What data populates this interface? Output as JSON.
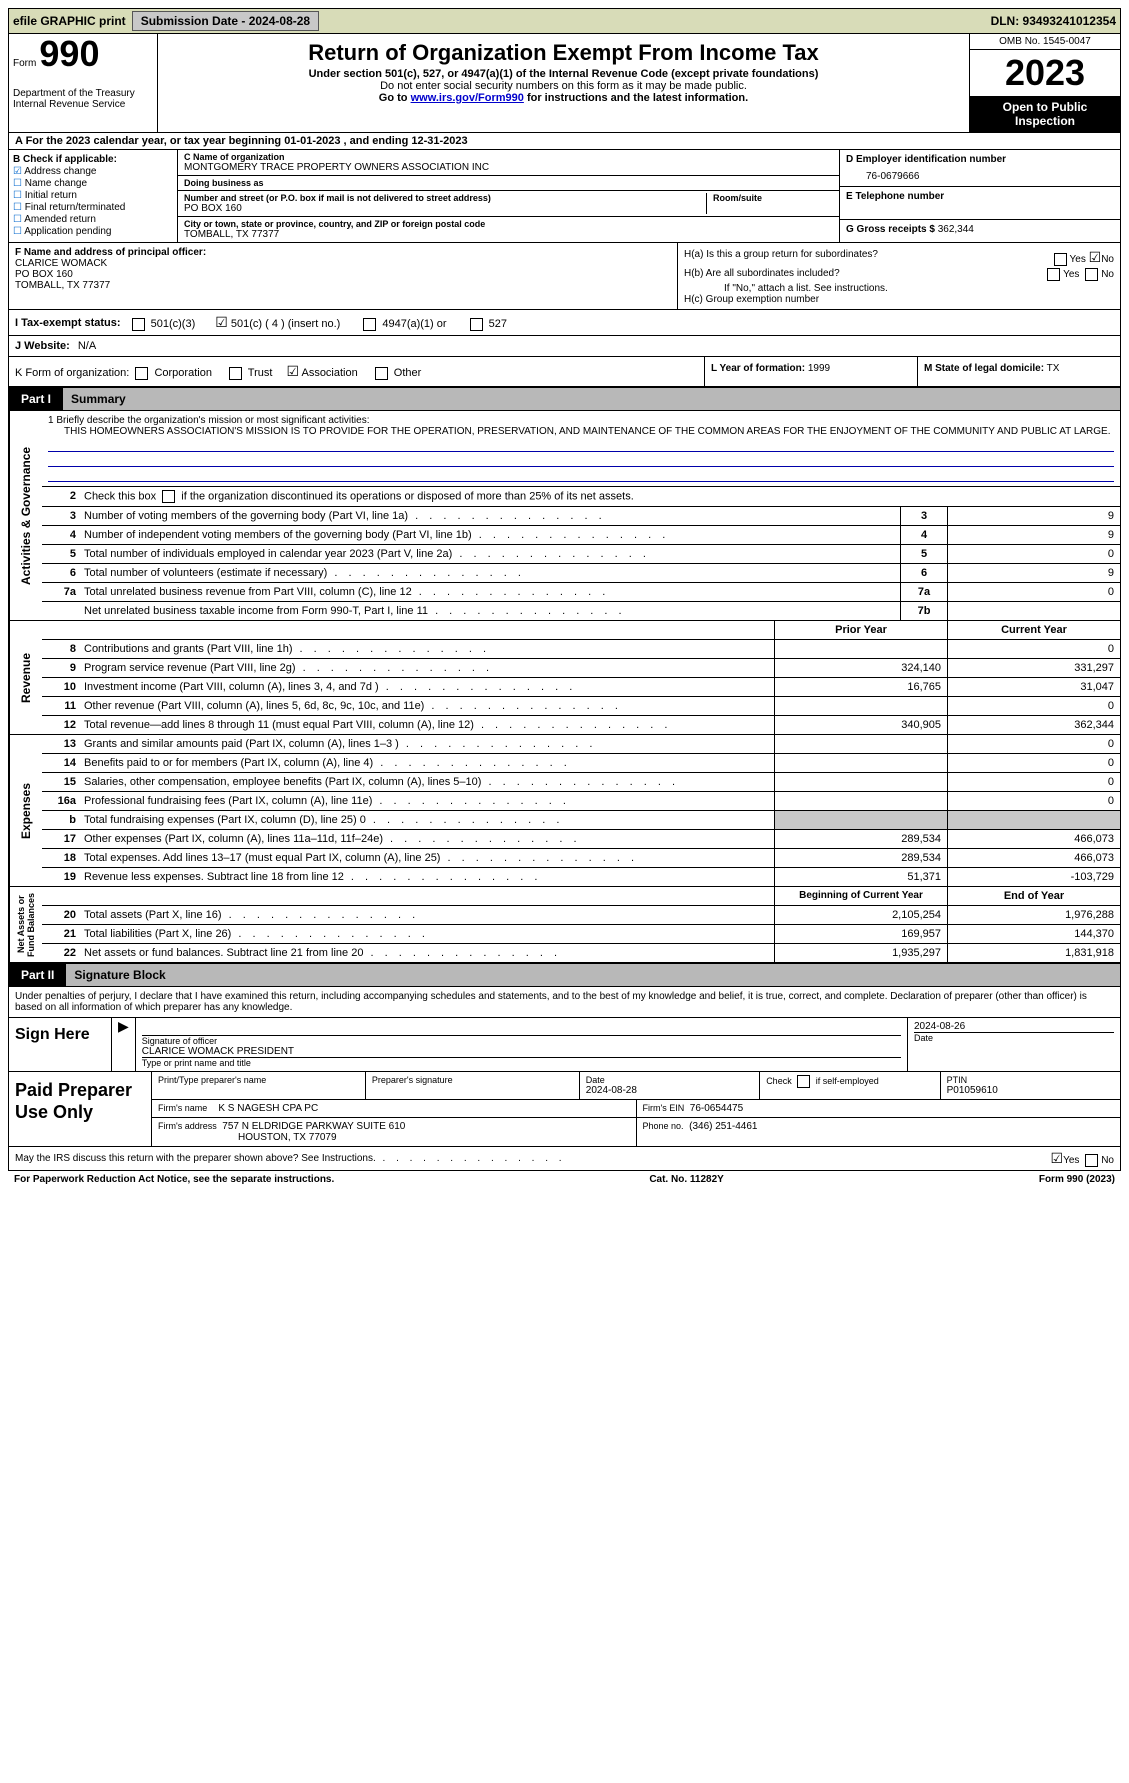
{
  "topbar": {
    "efile": "efile GRAPHIC print",
    "submission_label": "Submission Date - 2024-08-28",
    "dln_label": "DLN: 93493241012354"
  },
  "header": {
    "form_label": "Form",
    "form_number": "990",
    "dept": "Department of the Treasury\nInternal Revenue Service",
    "title": "Return of Organization Exempt From Income Tax",
    "sub1": "Under section 501(c), 527, or 4947(a)(1) of the Internal Revenue Code (except private foundations)",
    "sub2": "Do not enter social security numbers on this form as it may be made public.",
    "sub3_pre": "Go to ",
    "sub3_link": "www.irs.gov/Form990",
    "sub3_post": " for instructions and the latest information.",
    "omb": "OMB No. 1545-0047",
    "year": "2023",
    "inspect": "Open to Public Inspection"
  },
  "row_a": "A  For the 2023 calendar year, or tax year beginning 01-01-2023    , and ending 12-31-2023",
  "box_b": {
    "title": "B Check if applicable:",
    "items": [
      "Address change",
      "Name change",
      "Initial return",
      "Final return/terminated",
      "Amended return",
      "Application pending"
    ],
    "checked_index": 0
  },
  "box_c": {
    "name_label": "C Name of organization",
    "name": "MONTGOMERY TRACE PROPERTY OWNERS ASSOCIATION INC",
    "dba_label": "Doing business as",
    "dba": "",
    "addr_label": "Number and street (or P.O. box if mail is not delivered to street address)",
    "addr": "PO BOX 160",
    "room_label": "Room/suite",
    "city_label": "City or town, state or province, country, and ZIP or foreign postal code",
    "city": "TOMBALL, TX   77377"
  },
  "box_d": {
    "label": "D Employer identification number",
    "value": "76-0679666"
  },
  "box_e": {
    "label": "E Telephone number",
    "value": ""
  },
  "box_g": {
    "label": "G Gross receipts $",
    "value": "362,344"
  },
  "box_f": {
    "label": "F   Name and address of principal officer:",
    "name": "CLARICE WOMACK",
    "addr1": "PO BOX 160",
    "addr2": "TOMBALL, TX  77377"
  },
  "box_h": {
    "a_label": "H(a)  Is this a group return for subordinates?",
    "a_yes": "Yes",
    "a_no": "No",
    "b_label": "H(b)  Are all subordinates included?",
    "b_yes": "Yes",
    "b_no": "No",
    "note": "If \"No,\" attach a list. See instructions.",
    "c_label": "H(c)  Group exemption number"
  },
  "row_i": {
    "label": "I     Tax-exempt status:",
    "opts": [
      "501(c)(3)",
      "501(c) ( 4 ) (insert no.)",
      "4947(a)(1) or",
      "527"
    ],
    "checked_index": 1
  },
  "row_j": {
    "label": "J     Website:",
    "value": "N/A"
  },
  "row_k": {
    "label": "K Form of organization:",
    "opts": [
      "Corporation",
      "Trust",
      "Association",
      "Other"
    ],
    "checked_index": 2
  },
  "row_l": {
    "label": "L Year of formation:",
    "value": "1999"
  },
  "row_m": {
    "label": "M State of legal domicile:",
    "value": "TX"
  },
  "part1": {
    "label": "Part I",
    "title": "Summary"
  },
  "mission": {
    "label": "1   Briefly describe the organization's mission or most significant activities:",
    "text": "THIS HOMEOWNERS ASSOCIATION'S MISSION IS TO PROVIDE FOR THE OPERATION, PRESERVATION, AND MAINTENANCE OF THE COMMON AREAS FOR THE ENJOYMENT OF THE COMMUNITY AND PUBLIC AT LARGE."
  },
  "line2": "2    Check this box         if the organization discontinued its operations or disposed of more than 25% of its net assets.",
  "governance_rows": [
    {
      "n": "3",
      "d": "Number of voting members of the governing body (Part VI, line 1a)",
      "k": "3",
      "v": "9"
    },
    {
      "n": "4",
      "d": "Number of independent voting members of the governing body (Part VI, line 1b)",
      "k": "4",
      "v": "9"
    },
    {
      "n": "5",
      "d": "Total number of individuals employed in calendar year 2023 (Part V, line 2a)",
      "k": "5",
      "v": "0"
    },
    {
      "n": "6",
      "d": "Total number of volunteers (estimate if necessary)",
      "k": "6",
      "v": "9"
    },
    {
      "n": "7a",
      "d": "Total unrelated business revenue from Part VIII, column (C), line 12",
      "k": "7a",
      "v": "0"
    },
    {
      "n": "",
      "d": "Net unrelated business taxable income from Form 990-T, Part I, line 11",
      "k": "7b",
      "v": ""
    }
  ],
  "col_headers": {
    "c1": "Prior Year",
    "c2": "Current Year"
  },
  "revenue_rows": [
    {
      "n": "8",
      "d": "Contributions and grants (Part VIII, line 1h)",
      "c1": "",
      "c2": "0"
    },
    {
      "n": "9",
      "d": "Program service revenue (Part VIII, line 2g)",
      "c1": "324,140",
      "c2": "331,297"
    },
    {
      "n": "10",
      "d": "Investment income (Part VIII, column (A), lines 3, 4, and 7d )",
      "c1": "16,765",
      "c2": "31,047"
    },
    {
      "n": "11",
      "d": "Other revenue (Part VIII, column (A), lines 5, 6d, 8c, 9c, 10c, and 11e)",
      "c1": "",
      "c2": "0"
    },
    {
      "n": "12",
      "d": "Total revenue—add lines 8 through 11 (must equal Part VIII, column (A), line 12)",
      "c1": "340,905",
      "c2": "362,344"
    }
  ],
  "expense_rows": [
    {
      "n": "13",
      "d": "Grants and similar amounts paid (Part IX, column (A), lines 1–3 )",
      "c1": "",
      "c2": "0"
    },
    {
      "n": "14",
      "d": "Benefits paid to or for members (Part IX, column (A), line 4)",
      "c1": "",
      "c2": "0"
    },
    {
      "n": "15",
      "d": "Salaries, other compensation, employee benefits (Part IX, column (A), lines 5–10)",
      "c1": "",
      "c2": "0"
    },
    {
      "n": "16a",
      "d": "Professional fundraising fees (Part IX, column (A), line 11e)",
      "c1": "",
      "c2": "0"
    },
    {
      "n": "b",
      "d": "Total fundraising expenses (Part IX, column (D), line 25) 0",
      "c1": "grey",
      "c2": "grey"
    },
    {
      "n": "17",
      "d": "Other expenses (Part IX, column (A), lines 11a–11d, 11f–24e)",
      "c1": "289,534",
      "c2": "466,073"
    },
    {
      "n": "18",
      "d": "Total expenses. Add lines 13–17 (must equal Part IX, column (A), line 25)",
      "c1": "289,534",
      "c2": "466,073"
    },
    {
      "n": "19",
      "d": "Revenue less expenses. Subtract line 18 from line 12",
      "c1": "51,371",
      "c2": "-103,729"
    }
  ],
  "net_headers": {
    "c1": "Beginning of Current Year",
    "c2": "End of Year"
  },
  "net_rows": [
    {
      "n": "20",
      "d": "Total assets (Part X, line 16)",
      "c1": "2,105,254",
      "c2": "1,976,288"
    },
    {
      "n": "21",
      "d": "Total liabilities (Part X, line 26)",
      "c1": "169,957",
      "c2": "144,370"
    },
    {
      "n": "22",
      "d": "Net assets or fund balances. Subtract line 21 from line 20",
      "c1": "1,935,297",
      "c2": "1,831,918"
    }
  ],
  "vert_labels": {
    "gov": "Activities & Governance",
    "rev": "Revenue",
    "exp": "Expenses",
    "net": "Net Assets or\nFund Balances"
  },
  "part2": {
    "label": "Part II",
    "title": "Signature Block"
  },
  "perjury": "Under penalties of perjury, I declare that I have examined this return, including accompanying schedules and statements, and to the best of my knowledge and belief, it is true, correct, and complete. Declaration of preparer (other than officer) is based on all information of which preparer has any knowledge.",
  "sign": {
    "here": "Sign Here",
    "sig_label": "Signature of officer",
    "officer": "CLARICE WOMACK  PRESIDENT",
    "title_label": "Type or print name and title",
    "date_label": "Date",
    "date": "2024-08-26"
  },
  "paid": {
    "title": "Paid Preparer Use Only",
    "name_label": "Print/Type preparer's name",
    "sig_label": "Preparer's signature",
    "date_label": "Date",
    "date": "2024-08-28",
    "check_label": "Check         if self-employed",
    "ptin_label": "PTIN",
    "ptin": "P01059610",
    "firm_name_label": "Firm's name",
    "firm_name": "K S NAGESH CPA PC",
    "firm_ein_label": "Firm's EIN",
    "firm_ein": "76-0654475",
    "firm_addr_label": "Firm's address",
    "firm_addr1": "757 N ELDRIDGE PARKWAY SUITE 610",
    "firm_addr2": "HOUSTON, TX   77079",
    "phone_label": "Phone no.",
    "phone": "(346) 251-4461"
  },
  "discuss": {
    "text": "May the IRS discuss this return with the preparer shown above? See Instructions.",
    "yes": "Yes",
    "no": "No"
  },
  "footer": {
    "left": "For Paperwork Reduction Act Notice, see the separate instructions.",
    "mid": "Cat. No. 11282Y",
    "right": "Form 990 (2023)"
  }
}
